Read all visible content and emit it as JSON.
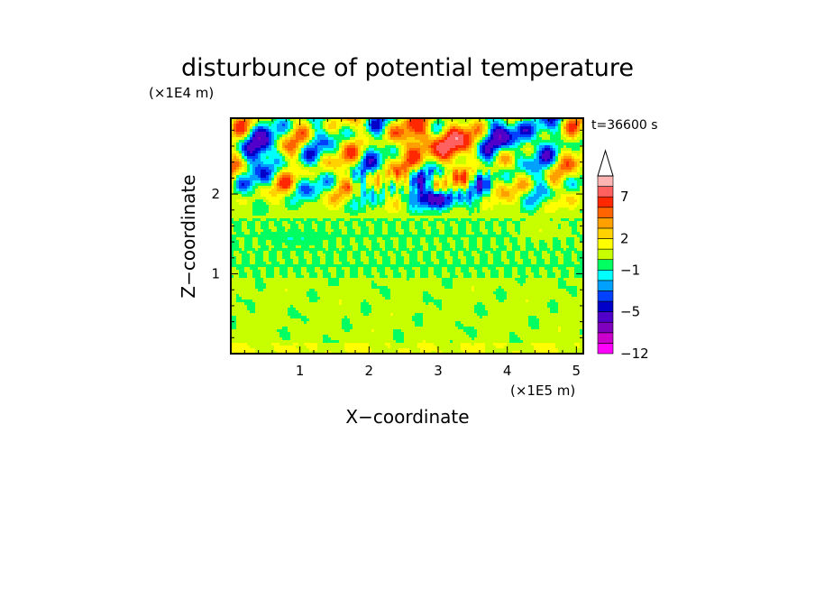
{
  "chart_data": {
    "type": "heatmap",
    "title": "disturbunce of potential temperature",
    "time_label": "t=36600 s",
    "xlabel": "X−coordinate",
    "ylabel": "Z−coordinate",
    "x_unit": "(×1E5 m)",
    "y_unit": "(×1E4 m)",
    "xlim": [
      0,
      5.1
    ],
    "ylim": [
      0,
      2.95
    ],
    "x_ticks": [
      1,
      2,
      3,
      4,
      5
    ],
    "y_ticks": [
      1,
      2
    ],
    "colorbar": {
      "levels": [
        -12,
        -11,
        -9,
        -7,
        -5,
        -4,
        -3,
        -2,
        -1,
        0,
        1,
        2,
        3,
        4,
        5,
        7,
        9,
        11
      ],
      "tick_labels": [
        "−12",
        "−5",
        "−1",
        "2",
        "7"
      ],
      "tick_values": [
        -12,
        -5,
        -1,
        2,
        7
      ],
      "colors": [
        "#ff00ff",
        "#cc00cc",
        "#8000c0",
        "#5000c8",
        "#0000c8",
        "#0040ff",
        "#00a0ff",
        "#00ffff",
        "#00ff60",
        "#c8ff00",
        "#ffff00",
        "#ffd200",
        "#ffa000",
        "#ff6400",
        "#ff2800",
        "#ff6060",
        "#ffb4b4"
      ],
      "extend": "max"
    }
  }
}
